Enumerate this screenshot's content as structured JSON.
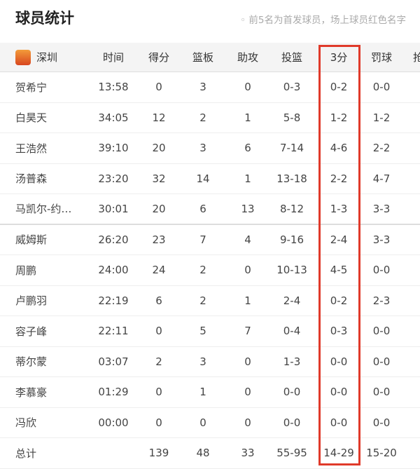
{
  "title": "球员统计",
  "note": "◦ 前5名为首发球员，场上球员红色名字",
  "team": {
    "name": "深圳",
    "logo_icon": "shenzhen-team-logo"
  },
  "highlight_color": "#e03a2a",
  "columns": [
    "时间",
    "得分",
    "篮板",
    "助攻",
    "投篮",
    "3分",
    "罚球",
    "抢"
  ],
  "players": [
    {
      "name": "贺希宁",
      "time": "13:58",
      "pts": "0",
      "reb": "3",
      "ast": "0",
      "fg": "0-3",
      "tp": "0-2",
      "ft": "0-0"
    },
    {
      "name": "白昊天",
      "time": "34:05",
      "pts": "12",
      "reb": "2",
      "ast": "1",
      "fg": "5-8",
      "tp": "1-2",
      "ft": "1-2"
    },
    {
      "name": "王浩然",
      "time": "39:10",
      "pts": "20",
      "reb": "3",
      "ast": "6",
      "fg": "7-14",
      "tp": "4-6",
      "ft": "2-2"
    },
    {
      "name": "汤普森",
      "time": "23:20",
      "pts": "32",
      "reb": "14",
      "ast": "1",
      "fg": "13-18",
      "tp": "2-2",
      "ft": "4-7"
    },
    {
      "name": "马凯尔-约…",
      "time": "30:01",
      "pts": "20",
      "reb": "6",
      "ast": "13",
      "fg": "8-12",
      "tp": "1-3",
      "ft": "3-3"
    },
    {
      "name": "威姆斯",
      "time": "26:20",
      "pts": "23",
      "reb": "7",
      "ast": "4",
      "fg": "9-16",
      "tp": "2-4",
      "ft": "3-3"
    },
    {
      "name": "周鹏",
      "time": "24:00",
      "pts": "24",
      "reb": "2",
      "ast": "0",
      "fg": "10-13",
      "tp": "4-5",
      "ft": "0-0"
    },
    {
      "name": "卢鹏羽",
      "time": "22:19",
      "pts": "6",
      "reb": "2",
      "ast": "1",
      "fg": "2-4",
      "tp": "0-2",
      "ft": "2-3"
    },
    {
      "name": "容子峰",
      "time": "22:11",
      "pts": "0",
      "reb": "5",
      "ast": "7",
      "fg": "0-4",
      "tp": "0-3",
      "ft": "0-0"
    },
    {
      "name": "蒂尔蒙",
      "time": "03:07",
      "pts": "2",
      "reb": "3",
      "ast": "0",
      "fg": "1-3",
      "tp": "0-0",
      "ft": "0-0"
    },
    {
      "name": "李慕豪",
      "time": "01:29",
      "pts": "0",
      "reb": "1",
      "ast": "0",
      "fg": "0-0",
      "tp": "0-0",
      "ft": "0-0"
    },
    {
      "name": "冯欣",
      "time": "00:00",
      "pts": "0",
      "reb": "0",
      "ast": "0",
      "fg": "0-0",
      "tp": "0-0",
      "ft": "0-0"
    }
  ],
  "total": {
    "name": "总计",
    "time": "",
    "pts": "139",
    "reb": "48",
    "ast": "33",
    "fg": "55-95",
    "tp": "14-29",
    "ft": "15-20"
  }
}
